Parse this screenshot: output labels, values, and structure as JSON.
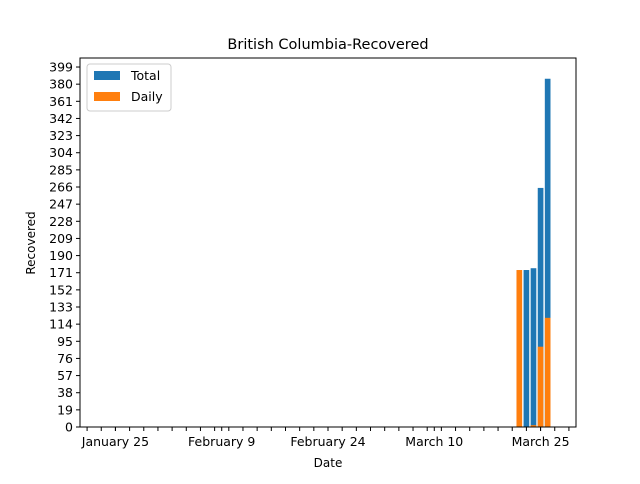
{
  "chart_data": {
    "type": "bar",
    "title": "British Columbia-Recovered",
    "xlabel": "Date",
    "ylabel": "Recovered",
    "ylim": [
      0,
      409
    ],
    "y_ticks": [
      0,
      19,
      38,
      57,
      76,
      95,
      114,
      133,
      152,
      171,
      190,
      209,
      228,
      247,
      266,
      285,
      304,
      323,
      342,
      361,
      380,
      399
    ],
    "x_tick_labels": [
      "January 25",
      "February 9",
      "February 24",
      "March 10",
      "March 25"
    ],
    "x_tick_label_dates": [
      "2020-01-25",
      "2020-02-09",
      "2020-02-24",
      "2020-03-10",
      "2020-03-25"
    ],
    "x_range": [
      "2020-01-20",
      "2020-03-30"
    ],
    "grid": false,
    "legend_position": "top-left",
    "series": [
      {
        "name": "Total",
        "color": "#1f77b4",
        "points": [
          {
            "date": "2020-03-22",
            "value": 0
          },
          {
            "date": "2020-03-23",
            "value": 174
          },
          {
            "date": "2020-03-24",
            "value": 176
          },
          {
            "date": "2020-03-25",
            "value": 265
          },
          {
            "date": "2020-03-26",
            "value": 386
          }
        ]
      },
      {
        "name": "Daily",
        "color": "#ff7f0e",
        "points": [
          {
            "date": "2020-03-22",
            "value": 174
          },
          {
            "date": "2020-03-23",
            "value": 0
          },
          {
            "date": "2020-03-24",
            "value": 2
          },
          {
            "date": "2020-03-25",
            "value": 89
          },
          {
            "date": "2020-03-26",
            "value": 121
          }
        ]
      }
    ]
  }
}
